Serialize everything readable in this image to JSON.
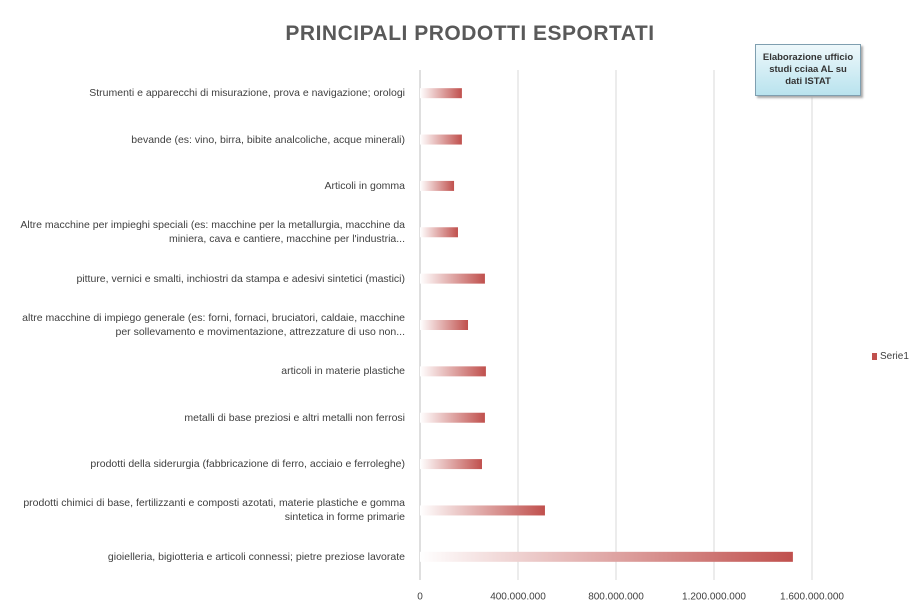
{
  "chart_data": {
    "type": "hbar",
    "title": "PRINCIPALI PRODOTTI ESPORTATI",
    "annotation": "Elaborazione ufficio studi cciaa AL su dati ISTAT",
    "categories": [
      "Strumenti e apparecchi di misurazione, prova e navigazione; orologi",
      "bevande (es: vino, birra, bibite analcoliche, acque minerali)",
      "Articoli in gomma",
      "Altre macchine per impieghi speciali (es: macchine per la metallurgia, macchine da miniera, cava e cantiere, macchine per l'industria...",
      "pitture, vernici e smalti, inchiostri da stampa e adesivi sintetici (mastici)",
      "altre macchine di impiego generale (es: forni, fornaci, bruciatori, caldaie, macchine per sollevamento e movimentazione, attrezzature di uso non...",
      "articoli in materie plastiche",
      "metalli di base preziosi e altri metalli non ferrosi",
      "prodotti della siderurgia (fabbricazione di ferro, acciaio e ferroleghe)",
      "prodotti chimici di base, fertilizzanti e composti azotati, materie plastiche e gomma sintetica in forme primarie",
      "gioielleria, bigiotteria e articoli connessi; pietre preziose lavorate"
    ],
    "series": [
      {
        "name": "Serie1",
        "color": "#c0504d",
        "values": [
          171000000,
          171000000,
          139000000,
          155000000,
          265000000,
          196000000,
          269000000,
          265000000,
          253000000,
          510000000,
          1522000000
        ]
      }
    ],
    "xlim": [
      0,
      1600000000
    ],
    "xticks": [
      0,
      {
        "value": 400000000,
        "label": "400.000.000"
      },
      {
        "value": 800000000,
        "label": "800.000.000"
      },
      {
        "value": 1200000000,
        "label": "1.200.000.000"
      },
      {
        "value": 1600000000,
        "label": "1.600.000.000"
      }
    ],
    "grid": true
  }
}
